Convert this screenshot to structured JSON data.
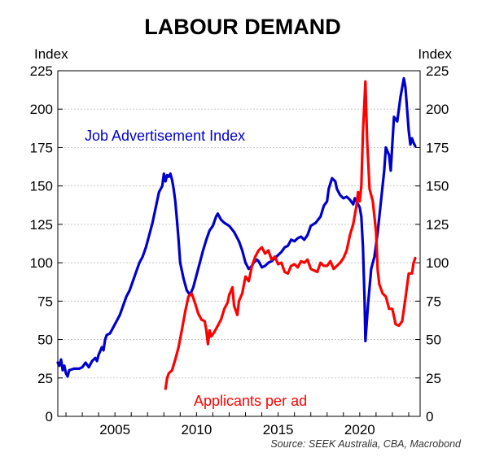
{
  "chart_data": {
    "type": "line",
    "title": "LABOUR DEMAND",
    "ylabel_left": "Index",
    "ylabel_right": "Index",
    "ylim": [
      0,
      225
    ],
    "yticks": [
      0,
      25,
      50,
      75,
      100,
      125,
      150,
      175,
      200,
      225
    ],
    "xlim": [
      2001.5,
      2023.7
    ],
    "xticks": [
      2005,
      2010,
      2015,
      2020
    ],
    "grid": true,
    "source": "Source: SEEK Australia, CBA, Macrobond",
    "colors": {
      "job_ads": "#0000cc",
      "applicants": "#ff0000"
    },
    "series": [
      {
        "name": "Job Advertisement Index",
        "color": "#0000cc",
        "points": [
          [
            2001.5,
            35
          ],
          [
            2001.6,
            33
          ],
          [
            2001.7,
            37
          ],
          [
            2001.8,
            30
          ],
          [
            2001.9,
            33
          ],
          [
            2002.0,
            28
          ],
          [
            2002.1,
            26
          ],
          [
            2002.2,
            30
          ],
          [
            2002.5,
            31
          ],
          [
            2002.8,
            31
          ],
          [
            2003.0,
            32
          ],
          [
            2003.2,
            35
          ],
          [
            2003.4,
            32
          ],
          [
            2003.6,
            36
          ],
          [
            2003.8,
            38
          ],
          [
            2003.9,
            36
          ],
          [
            2004.0,
            40
          ],
          [
            2004.2,
            45
          ],
          [
            2004.3,
            43
          ],
          [
            2004.4,
            50
          ],
          [
            2004.5,
            53
          ],
          [
            2004.7,
            54
          ],
          [
            2004.9,
            58
          ],
          [
            2005.1,
            62
          ],
          [
            2005.3,
            66
          ],
          [
            2005.5,
            72
          ],
          [
            2005.7,
            78
          ],
          [
            2005.9,
            82
          ],
          [
            2006.1,
            88
          ],
          [
            2006.3,
            94
          ],
          [
            2006.5,
            100
          ],
          [
            2006.7,
            104
          ],
          [
            2006.9,
            110
          ],
          [
            2007.1,
            118
          ],
          [
            2007.3,
            126
          ],
          [
            2007.5,
            136
          ],
          [
            2007.7,
            146
          ],
          [
            2007.9,
            150
          ],
          [
            2008.0,
            158
          ],
          [
            2008.1,
            153
          ],
          [
            2008.2,
            157
          ],
          [
            2008.3,
            156
          ],
          [
            2008.4,
            158
          ],
          [
            2008.5,
            154
          ],
          [
            2008.6,
            148
          ],
          [
            2008.7,
            140
          ],
          [
            2008.8,
            128
          ],
          [
            2008.9,
            115
          ],
          [
            2009.0,
            100
          ],
          [
            2009.2,
            90
          ],
          [
            2009.4,
            82
          ],
          [
            2009.6,
            79
          ],
          [
            2009.8,
            84
          ],
          [
            2010.0,
            92
          ],
          [
            2010.2,
            100
          ],
          [
            2010.4,
            108
          ],
          [
            2010.6,
            115
          ],
          [
            2010.8,
            121
          ],
          [
            2011.0,
            124
          ],
          [
            2011.2,
            130
          ],
          [
            2011.3,
            132
          ],
          [
            2011.5,
            128
          ],
          [
            2011.7,
            126
          ],
          [
            2012.0,
            124
          ],
          [
            2012.3,
            120
          ],
          [
            2012.6,
            114
          ],
          [
            2012.8,
            108
          ],
          [
            2013.0,
            100
          ],
          [
            2013.2,
            96
          ],
          [
            2013.4,
            98
          ],
          [
            2013.5,
            100
          ],
          [
            2013.7,
            102
          ],
          [
            2013.8,
            101
          ],
          [
            2014.0,
            97
          ],
          [
            2014.2,
            98
          ],
          [
            2014.4,
            100
          ],
          [
            2014.6,
            101
          ],
          [
            2014.8,
            103
          ],
          [
            2015.0,
            105
          ],
          [
            2015.2,
            107
          ],
          [
            2015.4,
            110
          ],
          [
            2015.6,
            111
          ],
          [
            2015.8,
            115
          ],
          [
            2016.0,
            114
          ],
          [
            2016.2,
            116
          ],
          [
            2016.4,
            117
          ],
          [
            2016.6,
            115
          ],
          [
            2016.8,
            118
          ],
          [
            2017.0,
            124
          ],
          [
            2017.3,
            126
          ],
          [
            2017.6,
            130
          ],
          [
            2017.8,
            137
          ],
          [
            2018.0,
            140
          ],
          [
            2018.1,
            148
          ],
          [
            2018.3,
            155
          ],
          [
            2018.5,
            153
          ],
          [
            2018.6,
            148
          ],
          [
            2018.8,
            144
          ],
          [
            2019.0,
            142
          ],
          [
            2019.2,
            143
          ],
          [
            2019.4,
            141
          ],
          [
            2019.6,
            138
          ],
          [
            2019.7,
            142
          ],
          [
            2019.8,
            140
          ],
          [
            2020.0,
            136
          ],
          [
            2020.1,
            130
          ],
          [
            2020.2,
            110
          ],
          [
            2020.3,
            75
          ],
          [
            2020.35,
            49
          ],
          [
            2020.5,
            72
          ],
          [
            2020.7,
            96
          ],
          [
            2020.9,
            104
          ],
          [
            2021.1,
            120
          ],
          [
            2021.3,
            140
          ],
          [
            2021.5,
            160
          ],
          [
            2021.6,
            175
          ],
          [
            2021.8,
            170
          ],
          [
            2021.9,
            160
          ],
          [
            2022.1,
            195
          ],
          [
            2022.3,
            192
          ],
          [
            2022.5,
            208
          ],
          [
            2022.7,
            220
          ],
          [
            2022.8,
            214
          ],
          [
            2022.9,
            200
          ],
          [
            2023.0,
            186
          ],
          [
            2023.1,
            177
          ],
          [
            2023.2,
            181
          ],
          [
            2023.3,
            178
          ],
          [
            2023.4,
            176
          ]
        ]
      },
      {
        "name": "Applicants per ad",
        "color": "#ff0000",
        "points": [
          [
            2008.1,
            18
          ],
          [
            2008.2,
            25
          ],
          [
            2008.3,
            28
          ],
          [
            2008.5,
            30
          ],
          [
            2008.7,
            37
          ],
          [
            2008.9,
            45
          ],
          [
            2009.1,
            56
          ],
          [
            2009.3,
            68
          ],
          [
            2009.5,
            78
          ],
          [
            2009.7,
            80
          ],
          [
            2009.9,
            74
          ],
          [
            2010.1,
            67
          ],
          [
            2010.3,
            63
          ],
          [
            2010.5,
            62
          ],
          [
            2010.6,
            56
          ],
          [
            2010.7,
            47
          ],
          [
            2010.8,
            56
          ],
          [
            2010.9,
            52
          ],
          [
            2011.1,
            55
          ],
          [
            2011.3,
            59
          ],
          [
            2011.5,
            63
          ],
          [
            2011.7,
            70
          ],
          [
            2011.9,
            74
          ],
          [
            2012.0,
            79
          ],
          [
            2012.2,
            84
          ],
          [
            2012.3,
            72
          ],
          [
            2012.5,
            66
          ],
          [
            2012.6,
            75
          ],
          [
            2012.8,
            80
          ],
          [
            2013.0,
            91
          ],
          [
            2013.2,
            88
          ],
          [
            2013.4,
            98
          ],
          [
            2013.6,
            104
          ],
          [
            2013.8,
            108
          ],
          [
            2014.0,
            110
          ],
          [
            2014.2,
            106
          ],
          [
            2014.4,
            108
          ],
          [
            2014.6,
            102
          ],
          [
            2014.8,
            104
          ],
          [
            2015.0,
            99
          ],
          [
            2015.2,
            100
          ],
          [
            2015.4,
            94
          ],
          [
            2015.6,
            93
          ],
          [
            2015.8,
            98
          ],
          [
            2016.0,
            99
          ],
          [
            2016.2,
            97
          ],
          [
            2016.4,
            101
          ],
          [
            2016.6,
            100
          ],
          [
            2016.8,
            102
          ],
          [
            2017.0,
            96
          ],
          [
            2017.2,
            95
          ],
          [
            2017.4,
            94
          ],
          [
            2017.6,
            100
          ],
          [
            2017.8,
            98
          ],
          [
            2018.0,
            98
          ],
          [
            2018.2,
            101
          ],
          [
            2018.4,
            96
          ],
          [
            2018.6,
            98
          ],
          [
            2018.8,
            100
          ],
          [
            2019.0,
            103
          ],
          [
            2019.2,
            108
          ],
          [
            2019.4,
            118
          ],
          [
            2019.6,
            125
          ],
          [
            2019.8,
            137
          ],
          [
            2019.9,
            146
          ],
          [
            2020.0,
            140
          ],
          [
            2020.1,
            150
          ],
          [
            2020.2,
            185
          ],
          [
            2020.35,
            218
          ],
          [
            2020.45,
            180
          ],
          [
            2020.6,
            148
          ],
          [
            2020.8,
            140
          ],
          [
            2021.0,
            120
          ],
          [
            2021.1,
            95
          ],
          [
            2021.2,
            86
          ],
          [
            2021.4,
            80
          ],
          [
            2021.6,
            78
          ],
          [
            2021.8,
            70
          ],
          [
            2022.0,
            70
          ],
          [
            2022.2,
            60
          ],
          [
            2022.4,
            59
          ],
          [
            2022.6,
            62
          ],
          [
            2022.8,
            77
          ],
          [
            2023.0,
            93
          ],
          [
            2023.2,
            93
          ],
          [
            2023.3,
            100
          ],
          [
            2023.4,
            103
          ]
        ]
      }
    ]
  }
}
